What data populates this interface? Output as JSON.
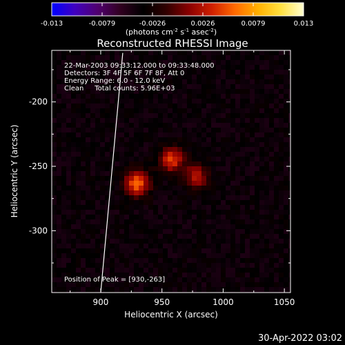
{
  "colorbar": {
    "ticks": [
      "-0.013",
      "-0.0079",
      "-0.0026",
      "0.0026",
      "0.0079",
      "0.013"
    ],
    "units_main": "(photons cm",
    "units_sup1": "-2",
    "units_mid1": " s",
    "units_sup2": "-1",
    "units_mid2": " asec",
    "units_sup3": "-2",
    "units_end": ")",
    "colors": [
      "#0000ff",
      "#4000c0",
      "#500070",
      "#300020",
      "#000000",
      "#300000",
      "#8a0000",
      "#d02000",
      "#ff6a00",
      "#ffb000",
      "#ffe040",
      "#ffffd0"
    ]
  },
  "chart_data": {
    "type": "heatmap",
    "title": "Reconstructed RHESSI Image",
    "xlabel": "Heliocentric X (arcsec)",
    "ylabel": "Heliocentric Y (arcsec)",
    "xlim": [
      860,
      1055
    ],
    "ylim": [
      -348,
      -160
    ],
    "xticks": [
      "900",
      "950",
      "1000",
      "1050"
    ],
    "yticks": [
      "-200",
      "-250",
      "-300"
    ],
    "color_range": [
      -0.013,
      0.013
    ],
    "sources": [
      {
        "x": 930,
        "y": -263,
        "value": 0.013
      },
      {
        "x": 958,
        "y": -245,
        "value": 0.011
      },
      {
        "x": 978,
        "y": -258,
        "value": 0.0095
      }
    ],
    "annotations": [
      "22-Mar-2003 09:33:12.000 to 09:33:48.000",
      "Detectors: 3F 4F 5F 6F 7F 8F, Att 0",
      "Energy Range: 6.0 - 12.0 keV",
      "Clean     Total counts: 5.96E+03"
    ],
    "peak_label": "Position of Peak = [930,-263]",
    "limb": [
      [
        918,
        -162
      ],
      [
        900,
        -348
      ]
    ]
  },
  "footer": {
    "date": "30-Apr-2022 03:02"
  }
}
